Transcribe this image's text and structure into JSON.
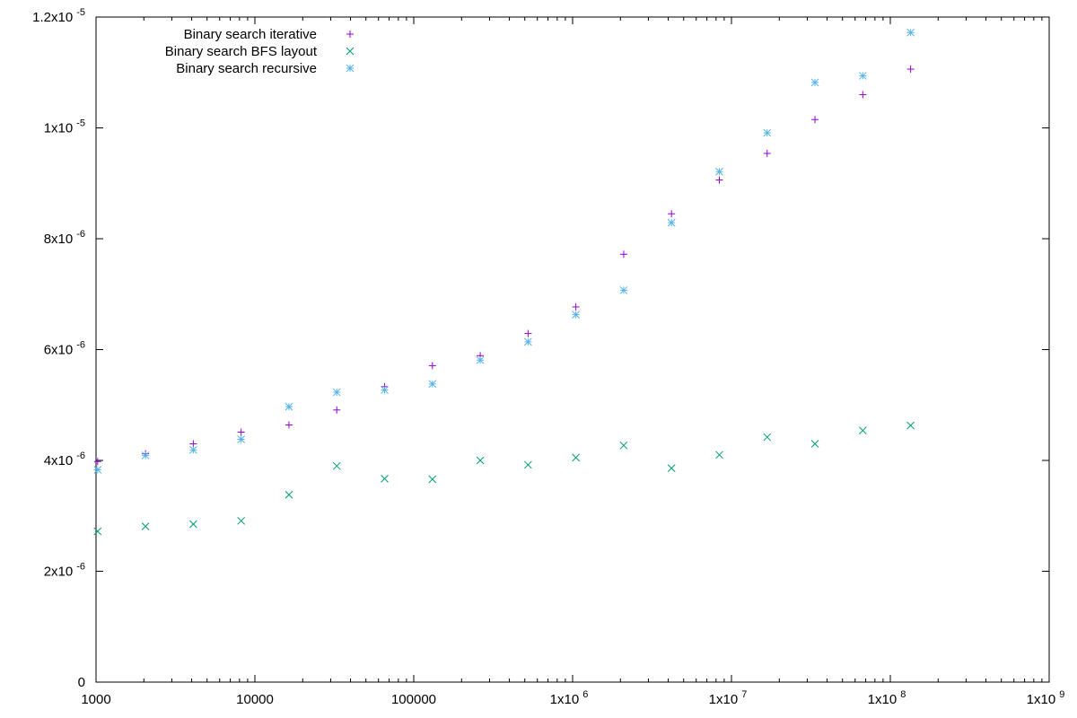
{
  "chart_data": {
    "type": "scatter",
    "title": "",
    "xlabel": "",
    "ylabel": "",
    "xscale": "log",
    "xlim": [
      1000,
      1000000000
    ],
    "ylim": [
      0,
      1.2e-05
    ],
    "grid": false,
    "legend_position": "top-left",
    "x_ticks": [
      {
        "value": 1000,
        "label": "1000"
      },
      {
        "value": 10000,
        "label": "10000"
      },
      {
        "value": 100000,
        "label": "100000"
      },
      {
        "value": 1000000,
        "label": "1x10",
        "exp": "6"
      },
      {
        "value": 10000000,
        "label": "1x10",
        "exp": "7"
      },
      {
        "value": 100000000,
        "label": "1x10",
        "exp": "8"
      },
      {
        "value": 1000000000,
        "label": "1x10",
        "exp": "9"
      }
    ],
    "y_ticks": [
      {
        "value": 0,
        "label": "0"
      },
      {
        "value": 2e-06,
        "label": "2x10",
        "exp": "-6"
      },
      {
        "value": 4e-06,
        "label": "4x10",
        "exp": "-6"
      },
      {
        "value": 6e-06,
        "label": "6x10",
        "exp": "-6"
      },
      {
        "value": 8e-06,
        "label": "8x10",
        "exp": "-6"
      },
      {
        "value": 1e-05,
        "label": "1x10",
        "exp": "-5"
      },
      {
        "value": 1.2e-05,
        "label": "1.2x10",
        "exp": "-5"
      }
    ],
    "x": [
      1024,
      2048,
      4096,
      8192,
      16384,
      32768,
      65536,
      131072,
      262144,
      524288,
      1048576,
      2097152,
      4194304,
      8388608,
      16777216,
      33554432,
      67108864,
      134217728
    ],
    "series": [
      {
        "name": "Binary search iterative",
        "marker": "plus",
        "color": "#9400d3",
        "values": [
          3.98e-06,
          4.12e-06,
          4.3e-06,
          4.51e-06,
          4.64e-06,
          4.91e-06,
          5.33e-06,
          5.71e-06,
          5.89e-06,
          6.29e-06,
          6.77e-06,
          7.72e-06,
          8.45e-06,
          9.06e-06,
          9.54e-06,
          1.015e-05,
          1.06e-05,
          1.106e-05
        ]
      },
      {
        "name": "Binary search BFS layout",
        "marker": "cross",
        "color": "#009e73",
        "values": [
          2.72e-06,
          2.81e-06,
          2.85e-06,
          2.91e-06,
          3.38e-06,
          3.9e-06,
          3.67e-06,
          3.66e-06,
          4e-06,
          3.92e-06,
          4.05e-06,
          4.27e-06,
          3.86e-06,
          4.1e-06,
          4.42e-06,
          4.3e-06,
          4.54e-06,
          4.63e-06
        ]
      },
      {
        "name": "Binary search recursive",
        "marker": "star",
        "color": "#56b4e9",
        "values": [
          3.83e-06,
          4.09e-06,
          4.19e-06,
          4.38e-06,
          4.97e-06,
          5.23e-06,
          5.27e-06,
          5.38e-06,
          5.81e-06,
          6.14e-06,
          6.63e-06,
          7.07e-06,
          8.29e-06,
          9.21e-06,
          9.91e-06,
          1.082e-05,
          1.094e-05,
          1.172e-05
        ]
      }
    ]
  }
}
